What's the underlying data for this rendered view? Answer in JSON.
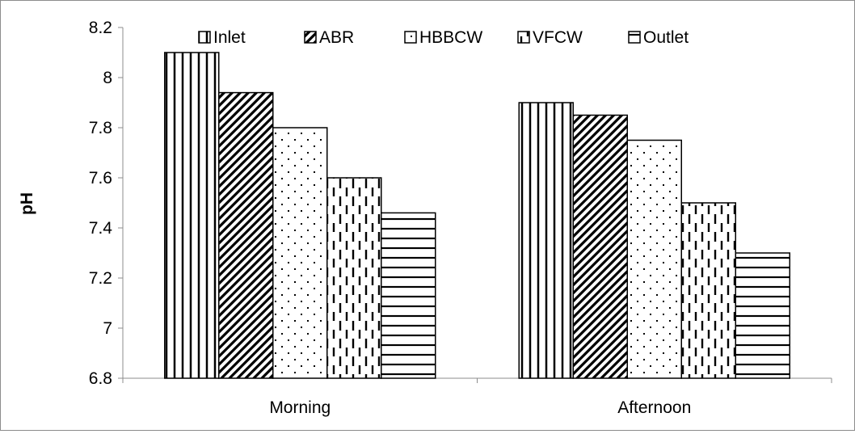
{
  "chart_data": {
    "type": "bar",
    "title": "",
    "xlabel": "",
    "ylabel": "pH",
    "ylim": [
      6.8,
      8.2
    ],
    "yticks": [
      "6.8",
      "7",
      "7.2",
      "7.4",
      "7.6",
      "7.8",
      "8",
      "8.2"
    ],
    "categories": [
      "Morning",
      "Afternoon"
    ],
    "series": [
      {
        "name": "Inlet",
        "values": [
          8.1,
          7.9
        ],
        "pattern": "vertical-lines"
      },
      {
        "name": "ABR",
        "values": [
          7.94,
          7.85
        ],
        "pattern": "diagonal-lines"
      },
      {
        "name": "HBBCW",
        "values": [
          7.8,
          7.75
        ],
        "pattern": "dots"
      },
      {
        "name": "VFCW",
        "values": [
          7.6,
          7.5
        ],
        "pattern": "dashed-vertical-lines"
      },
      {
        "name": "Outlet",
        "values": [
          7.46,
          7.3
        ],
        "pattern": "horizontal-lines"
      }
    ],
    "grid": false,
    "legend_position": "top"
  },
  "colors": {
    "bar_fill": "#ffffff",
    "bar_stroke": "#000000",
    "axis": "#8c8c8c",
    "frame": "#8c8c8c"
  }
}
